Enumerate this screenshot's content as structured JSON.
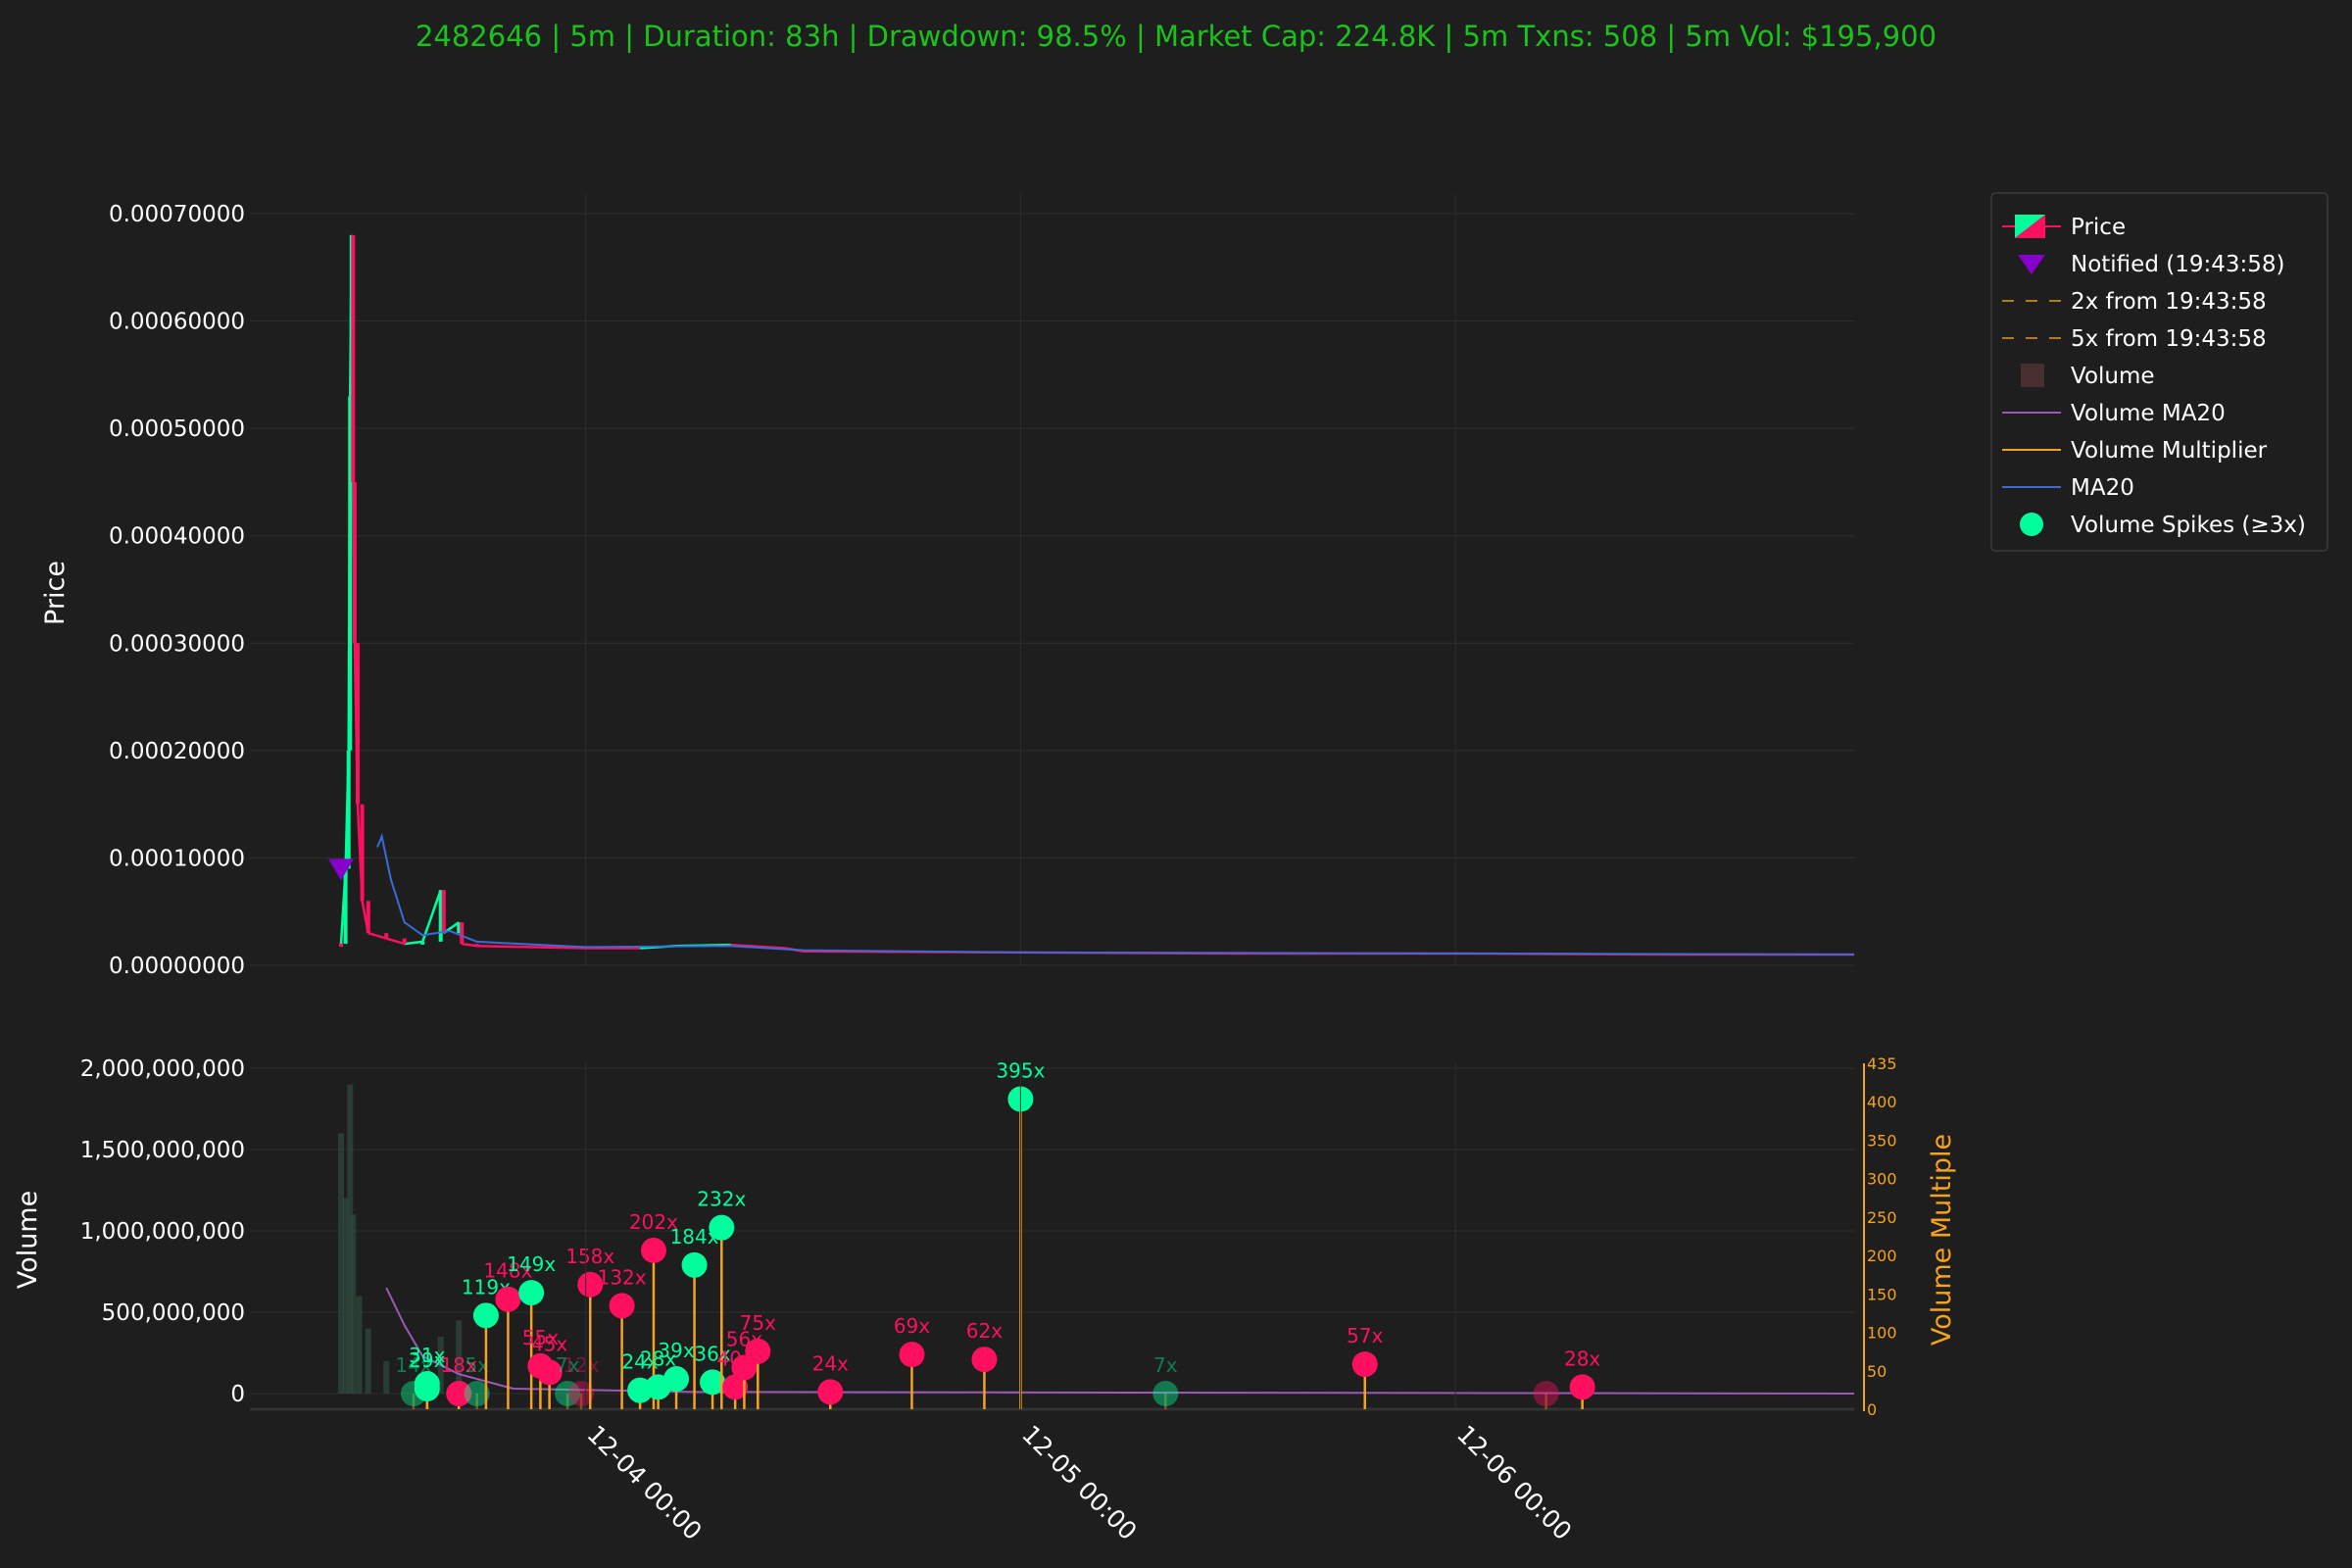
{
  "header": {
    "title": "2482646 | 5m | Duration: 83h | Drawdown: 98.5% | Market Cap: 224.8K | 5m Txns: 508 | 5m Vol: $195,900"
  },
  "colors": {
    "background": "#1e1e1e",
    "title": "#19c319",
    "up": "#00ff9c",
    "down": "#ff0f5f",
    "notified": "#8800cc",
    "multiplier": "#f5a21d",
    "volume_ma": "#9b59b6",
    "ma20": "#3a6bd8",
    "grid": "#2e2e2e",
    "text": "#ffffff"
  },
  "chart_data": [
    {
      "type": "line",
      "panel": "price",
      "ylabel": "Price",
      "ylim": [
        0,
        0.0007
      ],
      "yticks": [
        "0.00000000",
        "0.00010000",
        "0.00020000",
        "0.00030000",
        "0.00040000",
        "0.00050000",
        "0.00060000",
        "0.00070000"
      ],
      "xlim": [
        "12-03 10:30",
        "12-06 22:00"
      ],
      "xticks": [
        "12-04 00:00",
        "12-05 00:00",
        "12-06 00:00"
      ],
      "notified": {
        "time": "12-03 10:30",
        "price": 9e-05
      },
      "series": [
        {
          "name": "Price",
          "points": [
            [
              "12-03 10:30",
              2e-05
            ],
            [
              "12-03 10:45",
              9e-05
            ],
            [
              "12-03 10:55",
              0.0002
            ],
            [
              "12-03 11:00",
              0.00053
            ],
            [
              "12-03 11:05",
              0.00068
            ],
            [
              "12-03 11:10",
              0.00045
            ],
            [
              "12-03 11:15",
              0.0003
            ],
            [
              "12-03 11:25",
              0.00015
            ],
            [
              "12-03 11:40",
              6e-05
            ],
            [
              "12-03 12:00",
              3e-05
            ],
            [
              "12-03 13:00",
              2.5e-05
            ],
            [
              "12-03 14:00",
              2e-05
            ],
            [
              "12-03 15:00",
              2.2e-05
            ],
            [
              "12-03 16:00",
              7e-05
            ],
            [
              "12-03 16:10",
              3e-05
            ],
            [
              "12-03 17:00",
              4e-05
            ],
            [
              "12-03 17:10",
              2e-05
            ],
            [
              "12-03 18:00",
              1.8e-05
            ],
            [
              "12-03 21:00",
              1.7e-05
            ],
            [
              "12-04 00:00",
              1.6e-05
            ],
            [
              "12-04 03:00",
              1.6e-05
            ],
            [
              "12-04 05:00",
              1.8e-05
            ],
            [
              "12-04 08:00",
              1.9e-05
            ],
            [
              "12-04 11:00",
              1.6e-05
            ],
            [
              "12-04 12:00",
              1.3e-05
            ],
            [
              "12-05 00:00",
              1.2e-05
            ],
            [
              "12-05 12:00",
              1.1e-05
            ],
            [
              "12-06 00:00",
              1.1e-05
            ],
            [
              "12-06 12:00",
              1e-05
            ],
            [
              "12-06 22:00",
              1e-05
            ]
          ]
        },
        {
          "name": "MA20",
          "points": [
            [
              "12-03 12:30",
              0.00011
            ],
            [
              "12-03 12:45",
              0.00012
            ],
            [
              "12-03 13:15",
              8e-05
            ],
            [
              "12-03 14:00",
              4e-05
            ],
            [
              "12-03 15:00",
              2.8e-05
            ],
            [
              "12-03 16:30",
              3.2e-05
            ],
            [
              "12-03 18:00",
              2.2e-05
            ],
            [
              "12-04 00:00",
              1.7e-05
            ],
            [
              "12-04 08:00",
              1.8e-05
            ],
            [
              "12-04 12:00",
              1.4e-05
            ],
            [
              "12-05 00:00",
              1.2e-05
            ],
            [
              "12-06 00:00",
              1.1e-05
            ],
            [
              "12-06 22:00",
              1e-05
            ]
          ]
        }
      ],
      "reference_lines": [
        "2x from 19:43:58",
        "5x from 19:43:58"
      ]
    },
    {
      "type": "bar",
      "panel": "volume",
      "ylabel": "Volume",
      "y2label": "Volume Multiple",
      "ylim": [
        -100000000,
        2000000000
      ],
      "yticks": [
        "0",
        "500,000,000",
        "1,000,000,000",
        "1,500,000,000",
        "2,000,000,000"
      ],
      "y2ticks": [
        "0",
        "50",
        "100",
        "150",
        "200",
        "250",
        "300",
        "350",
        "400",
        "435"
      ],
      "spikes": [
        {
          "time": "12-03 14:30",
          "value": 0,
          "label": "14x",
          "color": "up",
          "dim": true
        },
        {
          "time": "12-03 15:15",
          "value": 60000000,
          "label": "31x",
          "color": "up"
        },
        {
          "time": "12-03 15:15",
          "value": 30000000,
          "label": "29x",
          "color": "up"
        },
        {
          "time": "12-03 17:00",
          "value": 0,
          "label": "18x",
          "color": "down"
        },
        {
          "time": "12-03 18:00",
          "value": 0,
          "label": "5x",
          "color": "up",
          "dim": true
        },
        {
          "time": "12-03 18:30",
          "value": 480000000,
          "label": "119x",
          "color": "up"
        },
        {
          "time": "12-03 19:43",
          "value": 580000000,
          "label": "148x",
          "color": "down"
        },
        {
          "time": "12-03 21:00",
          "value": 620000000,
          "label": "149x",
          "color": "up"
        },
        {
          "time": "12-03 21:30",
          "value": 170000000,
          "label": "55x",
          "color": "down"
        },
        {
          "time": "12-03 22:00",
          "value": 130000000,
          "label": "45x",
          "color": "down"
        },
        {
          "time": "12-03 23:00",
          "value": 0,
          "label": "7x",
          "color": "up",
          "dim": true
        },
        {
          "time": "12-03 23:45",
          "value": 0,
          "label": "12x",
          "color": "down",
          "dim": true
        },
        {
          "time": "12-04 00:15",
          "value": 670000000,
          "label": "158x",
          "color": "down"
        },
        {
          "time": "12-04 02:00",
          "value": 540000000,
          "label": "132x",
          "color": "down"
        },
        {
          "time": "12-04 03:00",
          "value": 20000000,
          "label": "24x",
          "color": "up"
        },
        {
          "time": "12-04 03:45",
          "value": 880000000,
          "label": "202x",
          "color": "down"
        },
        {
          "time": "12-04 04:00",
          "value": 40000000,
          "label": "28x",
          "color": "up"
        },
        {
          "time": "12-04 05:00",
          "value": 90000000,
          "label": "39x",
          "color": "up"
        },
        {
          "time": "12-04 06:00",
          "value": 790000000,
          "label": "184x",
          "color": "up"
        },
        {
          "time": "12-04 07:00",
          "value": 70000000,
          "label": "36x",
          "color": "up"
        },
        {
          "time": "12-04 07:30",
          "value": 1020000000,
          "label": "232x",
          "color": "up"
        },
        {
          "time": "12-04 08:15",
          "value": 40000000,
          "label": "40x",
          "color": "down"
        },
        {
          "time": "12-04 08:45",
          "value": 160000000,
          "label": "56x",
          "color": "down"
        },
        {
          "time": "12-04 09:30",
          "value": 260000000,
          "label": "75x",
          "color": "down"
        },
        {
          "time": "12-04 13:30",
          "value": 10000000,
          "label": "24x",
          "color": "down"
        },
        {
          "time": "12-04 18:00",
          "value": 240000000,
          "label": "69x",
          "color": "down"
        },
        {
          "time": "12-04 22:00",
          "value": 210000000,
          "label": "62x",
          "color": "down"
        },
        {
          "time": "12-05 00:00",
          "value": 1810000000,
          "label": "395x",
          "color": "up"
        },
        {
          "time": "12-05 08:00",
          "value": 0,
          "label": "7x",
          "color": "up",
          "dim": true
        },
        {
          "time": "12-05 19:00",
          "value": 180000000,
          "label": "57x",
          "color": "down"
        },
        {
          "time": "12-06 05:00",
          "value": 0,
          "label": "",
          "color": "down",
          "dim": true
        },
        {
          "time": "12-06 07:00",
          "value": 40000000,
          "label": "28x",
          "color": "down"
        }
      ]
    }
  ],
  "legend": [
    {
      "label": "Price",
      "kind": "candle"
    },
    {
      "label": "Notified (19:43:58)",
      "kind": "triangle"
    },
    {
      "label": "2x from 19:43:58",
      "kind": "dash"
    },
    {
      "label": "5x from 19:43:58",
      "kind": "dash"
    },
    {
      "label": "Volume",
      "kind": "square"
    },
    {
      "label": "Volume MA20",
      "kind": "line-purple"
    },
    {
      "label": "Volume Multiplier",
      "kind": "line-orange"
    },
    {
      "label": "MA20",
      "kind": "line-blue"
    },
    {
      "label": "Volume Spikes (≥3x)",
      "kind": "dot"
    }
  ]
}
